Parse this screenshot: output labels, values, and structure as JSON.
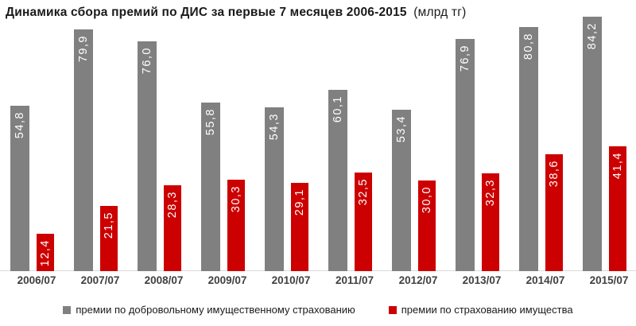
{
  "chart_data": {
    "type": "bar",
    "title": "Динамика сбора премий по ДИС за первые 7 месяцев 2006-2015",
    "title_unit": "(млрд тг)",
    "categories": [
      "2006/07",
      "2007/07",
      "2008/07",
      "2009/07",
      "2010/07",
      "2011/07",
      "2012/07",
      "2013/07",
      "2014/07",
      "2015/07"
    ],
    "series": [
      {
        "name": "премии по добровольному имущественному страхованию",
        "color": "#808080",
        "values": [
          54.8,
          79.9,
          76.0,
          55.8,
          54.3,
          60.1,
          53.4,
          76.9,
          80.8,
          84.2
        ]
      },
      {
        "name": "премии по страхованию имущества",
        "color": "#CC0000",
        "values": [
          12.4,
          21.5,
          28.3,
          30.3,
          29.1,
          32.5,
          30.0,
          32.3,
          38.6,
          41.4
        ]
      }
    ],
    "ylim": [
      0,
      85
    ],
    "grid": false,
    "legend_position": "bottom",
    "data_label_color": "#FFFFFF",
    "data_label_orientation": "rotate-up",
    "decimal_separator": ",",
    "axis_line_color": "#D9D9D9",
    "category_label_color": "#404040",
    "background": "#FFFFFF"
  }
}
